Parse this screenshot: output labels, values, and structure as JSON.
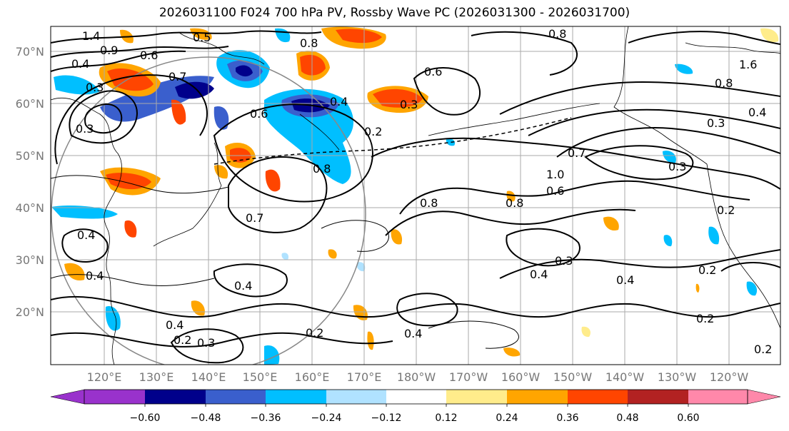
{
  "title": "2026031100 F024 700 hPa PV, Rossby Wave PC (2026031300 - 2026031700)",
  "lat_labels": [
    "70°N",
    "60°N",
    "50°N",
    "40°N",
    "30°N",
    "20°N"
  ],
  "lon_labels": [
    "120°E",
    "130°E",
    "140°E",
    "150°E",
    "160°E",
    "170°E",
    "180°W",
    "170°W",
    "160°W",
    "150°W",
    "140°W",
    "130°W",
    "120°W"
  ],
  "colorbar": {
    "ticks": [
      "−0.60",
      "−0.48",
      "−0.36",
      "−0.24",
      "−0.12",
      "0.12",
      "0.24",
      "0.36",
      "0.48",
      "0.60"
    ],
    "colors": [
      "#9932cc",
      "#00008b",
      "#3a5fcd",
      "#00bfff",
      "#b0e2ff",
      "#ffffff",
      "#ffec8b",
      "#ffa500",
      "#ff4500",
      "#b22222",
      "#ff88aa"
    ]
  },
  "contour_labels": [
    "1.4",
    "0.9",
    "0.6",
    "0.4",
    "0.3",
    "0.7",
    "0.6",
    "0.8",
    "0.4",
    "0.3",
    "0.2",
    "0.8",
    "0.7",
    "0.5",
    "0.6",
    "0.8",
    "0.8",
    "1.0",
    "0.7",
    "0.4",
    "0.4",
    "0.3",
    "0.4",
    "0.4",
    "0.2",
    "0.2",
    "0.3",
    "0.4",
    "0.2",
    "0.2",
    "0.3",
    "0.4",
    "0.2",
    "0.2",
    "0.3",
    "0.6",
    "0.8",
    "0.3",
    "0.4",
    "1.6",
    "0.8",
    "0.4"
  ]
}
